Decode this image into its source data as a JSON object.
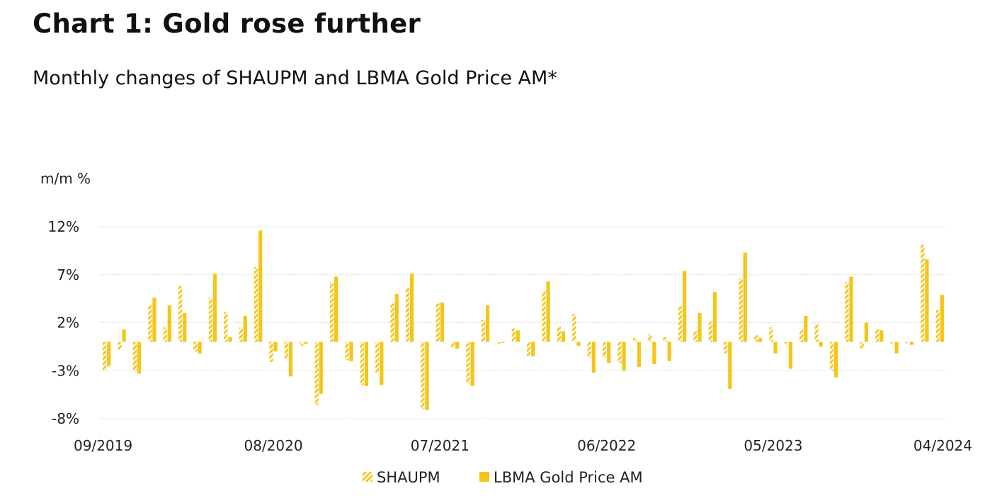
{
  "title": "Chart 1: Gold rose further",
  "subtitle": "Monthly changes of SHAUPM and LBMA Gold Price AM*",
  "chart_data": {
    "type": "bar",
    "y_unit_label": "m/m %",
    "ylim": [
      -8,
      12
    ],
    "yticks": [
      12,
      7,
      2,
      -3,
      -8
    ],
    "ytick_labels": [
      "12%",
      "7%",
      "2%",
      "-3%",
      "-8%"
    ],
    "grid": true,
    "legend_position": "bottom",
    "colors": {
      "SHAUPM": "#f5c518",
      "LBMA Gold Price AM": "#f5c518",
      "grid": "#d8d8d8"
    },
    "categories": [
      "09/2019",
      "10/2019",
      "11/2019",
      "12/2019",
      "01/2020",
      "02/2020",
      "03/2020",
      "04/2020",
      "05/2020",
      "06/2020",
      "07/2020",
      "08/2020",
      "09/2020",
      "10/2020",
      "11/2020",
      "12/2020",
      "01/2021",
      "02/2021",
      "03/2021",
      "04/2021",
      "05/2021",
      "06/2021",
      "07/2021",
      "08/2021",
      "09/2021",
      "10/2021",
      "11/2021",
      "12/2021",
      "01/2022",
      "02/2022",
      "03/2022",
      "04/2022",
      "05/2022",
      "06/2022",
      "07/2022",
      "08/2022",
      "09/2022",
      "10/2022",
      "11/2022",
      "12/2022",
      "01/2023",
      "02/2023",
      "03/2023",
      "04/2023",
      "05/2023",
      "06/2023",
      "07/2023",
      "08/2023",
      "09/2023",
      "10/2023",
      "11/2023",
      "12/2023",
      "01/2024",
      "02/2024",
      "03/2024",
      "04/2024"
    ],
    "x_tick_labels": [
      "09/2019",
      "08/2020",
      "07/2021",
      "06/2022",
      "05/2023",
      "04/2024"
    ],
    "series": [
      {
        "name": "SHAUPM",
        "pattern": "hatched",
        "values": [
          -3.0,
          -0.8,
          -3.0,
          3.8,
          1.5,
          5.8,
          -1.0,
          4.6,
          3.1,
          1.5,
          7.8,
          -2.1,
          -1.8,
          -0.4,
          -6.6,
          6.2,
          -1.9,
          -4.5,
          -3.2,
          4.0,
          5.7,
          -7.0,
          4.0,
          -0.6,
          -4.3,
          2.3,
          -0.2,
          1.4,
          -1.5,
          5.3,
          1.6,
          2.9,
          -1.6,
          -1.6,
          -2.2,
          0.4,
          0.8,
          0.5,
          3.7,
          1.1,
          2.1,
          -1.2,
          6.6,
          0.7,
          1.5,
          -0.2,
          1.3,
          1.9,
          -3.0,
          6.2,
          -0.7,
          1.3,
          -0.2,
          -0.2,
          10.1,
          3.3
        ]
      },
      {
        "name": "LBMA Gold Price AM",
        "values": [
          -2.5,
          1.3,
          -3.3,
          4.6,
          3.8,
          3.0,
          -1.2,
          7.1,
          0.5,
          2.7,
          11.6,
          -1.0,
          -3.6,
          -0.2,
          -5.4,
          6.8,
          -2.0,
          -4.6,
          -4.5,
          5.0,
          7.1,
          -7.1,
          4.1,
          -0.7,
          -4.6,
          3.8,
          -0.1,
          1.2,
          -1.5,
          6.3,
          1.1,
          -0.4,
          -3.2,
          -2.2,
          -3.0,
          -2.6,
          -2.3,
          -2.0,
          7.4,
          3.0,
          5.2,
          -4.9,
          9.3,
          0.4,
          -1.2,
          -2.8,
          2.7,
          -0.5,
          -3.7,
          6.8,
          2.0,
          1.2,
          -1.2,
          -0.3,
          8.6,
          4.9
        ]
      }
    ]
  }
}
